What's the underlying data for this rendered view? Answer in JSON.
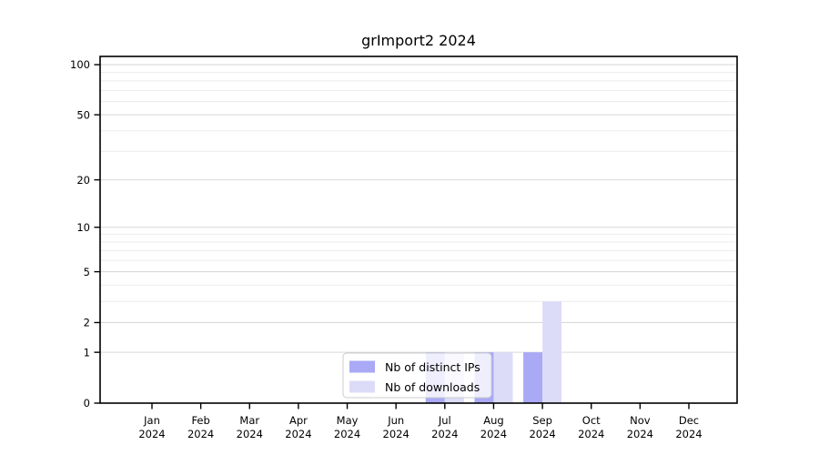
{
  "chart_data": {
    "type": "bar",
    "title": "grImport2 2024",
    "categories": [
      "Jan",
      "Feb",
      "Mar",
      "Apr",
      "May",
      "Jun",
      "Jul",
      "Aug",
      "Sep",
      "Oct",
      "Nov",
      "Dec"
    ],
    "x_tick_second_line": "2024",
    "series": [
      {
        "name": "Nb of distinct IPs",
        "color": "#a9a9f6",
        "values": [
          0,
          0,
          0,
          0,
          0,
          0,
          1,
          1,
          1,
          0,
          0,
          0
        ]
      },
      {
        "name": "Nb of downloads",
        "color": "#dcdcf8",
        "values": [
          0,
          0,
          0,
          0,
          0,
          0,
          1,
          1,
          3,
          0,
          0,
          0
        ]
      }
    ],
    "y_ticks": [
      0,
      1,
      2,
      5,
      10,
      20,
      50,
      100
    ],
    "y_scale": "log1p",
    "y_max": 112,
    "grid": true,
    "legend_position": "bottom-center",
    "colors": {
      "axis": "#000000",
      "grid_major": "#d9d9d9",
      "grid_minor": "#ececec",
      "legend_border": "#cccccc",
      "background": "#ffffff"
    }
  }
}
